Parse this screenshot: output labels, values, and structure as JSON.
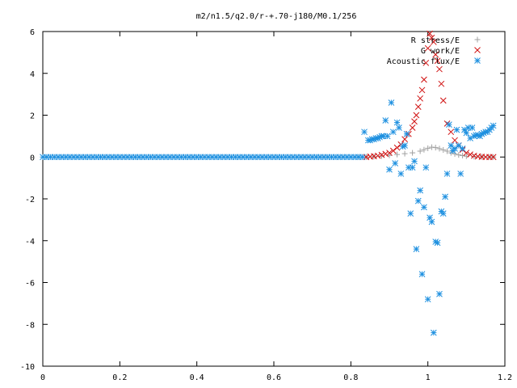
{
  "chart_data": {
    "type": "scatter",
    "title": "m2/n1.5/q2.0/r-+.70-j180/M0.1/256",
    "xlabel": "",
    "ylabel": "",
    "xlim": [
      0,
      1.2
    ],
    "ylim": [
      -10,
      6
    ],
    "xticks": [
      0,
      0.2,
      0.4,
      0.6,
      0.8,
      1,
      1.2
    ],
    "xtick_labels": [
      "0",
      "0.2",
      "0.4",
      "0.6",
      "0.8",
      "1",
      "1.2"
    ],
    "yticks": [
      -10,
      -8,
      -6,
      -4,
      -2,
      0,
      2,
      4,
      6
    ],
    "ytick_labels": [
      "-10",
      "-8",
      "-6",
      "-4",
      "-2",
      "0",
      "2",
      "4",
      "6"
    ],
    "grid": false,
    "legend_position": "top-right",
    "series": [
      {
        "name": "R stress/E",
        "marker": "plus",
        "color": "#a0a0a0",
        "x": [
          0.82,
          0.84,
          0.86,
          0.88,
          0.9,
          0.92,
          0.94,
          0.96,
          0.98,
          0.99,
          1.0,
          1.01,
          1.02,
          1.03,
          1.04,
          1.05,
          1.06,
          1.07,
          1.08,
          1.09,
          1.1,
          1.12,
          1.14,
          1.16,
          1.17
        ],
        "y": [
          0.0,
          0.0,
          0.02,
          0.05,
          0.08,
          0.12,
          0.16,
          0.2,
          0.28,
          0.35,
          0.42,
          0.47,
          0.45,
          0.4,
          0.34,
          0.28,
          0.2,
          0.15,
          0.1,
          0.07,
          0.04,
          0.02,
          0.01,
          0.0,
          0.0
        ]
      },
      {
        "name": "G work/E",
        "marker": "cross",
        "color": "#d01010",
        "x": [
          0.84,
          0.85,
          0.86,
          0.87,
          0.88,
          0.89,
          0.9,
          0.91,
          0.92,
          0.93,
          0.94,
          0.95,
          0.96,
          0.965,
          0.97,
          0.975,
          0.98,
          0.985,
          0.99,
          0.995,
          1.0,
          1.005,
          1.01,
          1.015,
          1.02,
          1.025,
          1.03,
          1.035,
          1.04,
          1.05,
          1.06,
          1.07,
          1.08,
          1.09,
          1.1,
          1.11,
          1.12,
          1.13,
          1.14,
          1.15,
          1.16,
          1.17
        ],
        "y": [
          0.0,
          0.02,
          0.04,
          0.06,
          0.1,
          0.15,
          0.2,
          0.3,
          0.45,
          0.6,
          0.85,
          1.1,
          1.4,
          1.7,
          2.0,
          2.4,
          2.8,
          3.2,
          3.7,
          4.5,
          5.2,
          5.9,
          5.7,
          5.5,
          4.9,
          4.6,
          4.2,
          3.5,
          2.7,
          1.6,
          1.2,
          0.8,
          0.55,
          0.35,
          0.2,
          0.12,
          0.06,
          0.03,
          0.01,
          0.0,
          0.0,
          0.0
        ]
      },
      {
        "name": "Acoustic flux/E",
        "marker": "star",
        "color": "#1e90e0",
        "x": [
          0.0,
          0.01,
          0.02,
          0.03,
          0.04,
          0.05,
          0.06,
          0.07,
          0.08,
          0.09,
          0.1,
          0.11,
          0.12,
          0.13,
          0.14,
          0.15,
          0.16,
          0.17,
          0.18,
          0.19,
          0.2,
          0.21,
          0.22,
          0.23,
          0.24,
          0.25,
          0.26,
          0.27,
          0.28,
          0.29,
          0.3,
          0.31,
          0.32,
          0.33,
          0.34,
          0.35,
          0.36,
          0.37,
          0.38,
          0.39,
          0.4,
          0.41,
          0.42,
          0.43,
          0.44,
          0.45,
          0.46,
          0.47,
          0.48,
          0.49,
          0.5,
          0.51,
          0.52,
          0.53,
          0.54,
          0.55,
          0.56,
          0.57,
          0.58,
          0.59,
          0.6,
          0.61,
          0.62,
          0.63,
          0.64,
          0.65,
          0.66,
          0.67,
          0.68,
          0.69,
          0.7,
          0.71,
          0.72,
          0.73,
          0.74,
          0.75,
          0.76,
          0.77,
          0.78,
          0.79,
          0.8,
          0.81,
          0.82,
          0.83,
          0.835,
          0.845,
          0.85,
          0.855,
          0.86,
          0.865,
          0.87,
          0.875,
          0.88,
          0.885,
          0.89,
          0.895,
          0.9,
          0.905,
          0.91,
          0.915,
          0.92,
          0.925,
          0.93,
          0.935,
          0.94,
          0.945,
          0.95,
          0.955,
          0.96,
          0.965,
          0.97,
          0.975,
          0.98,
          0.985,
          0.99,
          0.995,
          1.0,
          1.005,
          1.01,
          1.015,
          1.02,
          1.025,
          1.03,
          1.035,
          1.04,
          1.045,
          1.05,
          1.055,
          1.06,
          1.065,
          1.07,
          1.075,
          1.08,
          1.085,
          1.09,
          1.095,
          1.1,
          1.105,
          1.11,
          1.115,
          1.12,
          1.125,
          1.13,
          1.135,
          1.14,
          1.145,
          1.15,
          1.155,
          1.16,
          1.165,
          1.17
        ],
        "y": [
          0,
          0,
          0,
          0,
          0,
          0,
          0,
          0,
          0,
          0,
          0,
          0,
          0,
          0,
          0,
          0,
          0,
          0,
          0,
          0,
          0,
          0,
          0,
          0,
          0,
          0,
          0,
          0,
          0,
          0,
          0,
          0,
          0,
          0,
          0,
          0,
          0,
          0,
          0,
          0,
          0,
          0,
          0,
          0,
          0,
          0,
          0,
          0,
          0,
          0,
          0,
          0,
          0,
          0,
          0,
          0,
          0,
          0,
          0,
          0,
          0,
          0,
          0,
          0,
          0,
          0,
          0,
          0,
          0,
          0,
          0,
          0,
          0,
          0,
          0,
          0,
          0,
          0,
          0,
          0,
          0,
          0,
          0,
          0,
          1.2,
          0.8,
          0.8,
          0.85,
          0.85,
          0.9,
          0.9,
          0.95,
          1.0,
          1.0,
          1.75,
          1.0,
          -0.6,
          2.6,
          1.2,
          -0.3,
          1.65,
          1.4,
          -0.8,
          0.5,
          0.55,
          1.1,
          -0.5,
          -2.7,
          -0.5,
          -0.2,
          -4.4,
          -2.1,
          -1.6,
          -5.6,
          -2.4,
          -0.5,
          -6.8,
          -2.9,
          -3.1,
          -8.4,
          -4.05,
          -4.1,
          -6.55,
          -2.6,
          -2.7,
          -1.9,
          -0.8,
          1.55,
          0.55,
          0.3,
          0.4,
          1.3,
          0.55,
          -0.8,
          0.4,
          1.3,
          1.15,
          1.4,
          0.9,
          1.4,
          1.0,
          1.05,
          1.05,
          1.0,
          1.1,
          1.15,
          1.2,
          1.2,
          1.3,
          1.4,
          1.5
        ]
      }
    ]
  }
}
